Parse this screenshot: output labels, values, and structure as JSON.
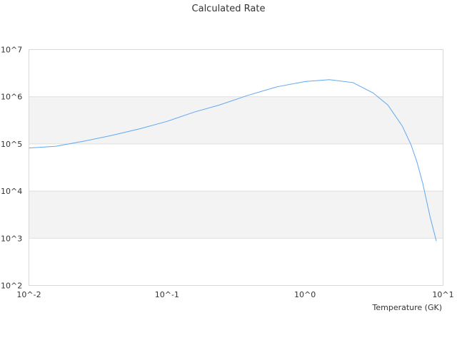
{
  "chart_data": {
    "type": "line",
    "title": "Calculated Rate",
    "xlabel": "Temperature (GK)",
    "ylabel": "",
    "xscale": "log",
    "yscale": "log",
    "xlim": [
      0.01,
      10
    ],
    "ylim": [
      100,
      10000000
    ],
    "xticks": [
      {
        "value": 0.01,
        "label": "10^-2"
      },
      {
        "value": 0.1,
        "label": "10^-1"
      },
      {
        "value": 1,
        "label": "10^0"
      },
      {
        "value": 10,
        "label": "10^1"
      }
    ],
    "yticks": [
      {
        "value": 100,
        "label": "10^2"
      },
      {
        "value": 1000,
        "label": "10^3"
      },
      {
        "value": 10000,
        "label": "10^4"
      },
      {
        "value": 100000,
        "label": "10^5"
      },
      {
        "value": 1000000,
        "label": "10^6"
      },
      {
        "value": 10000000,
        "label": "10^7"
      }
    ],
    "grid": true,
    "alternating_bands": true,
    "legend": "none",
    "colors": {
      "line": "#5fa8f0",
      "band": "#f3f3f3",
      "grid": "#dddddd"
    },
    "series": [
      {
        "x": [
          0.01,
          0.0156,
          0.0253,
          0.0392,
          0.0637,
          0.1,
          0.16,
          0.237,
          0.385,
          0.626,
          1.0,
          1.5,
          2.22,
          3.12,
          3.98,
          5.06,
          5.86,
          6.46,
          7.12,
          8.04,
          8.94
        ],
        "y": [
          82000,
          89000,
          115000,
          150000,
          210000,
          300000,
          480000,
          660000,
          1070000,
          1620000,
          2100000,
          2300000,
          2000000,
          1200000,
          670000,
          240000,
          96000,
          42000,
          14700,
          2900,
          870
        ]
      }
    ]
  }
}
